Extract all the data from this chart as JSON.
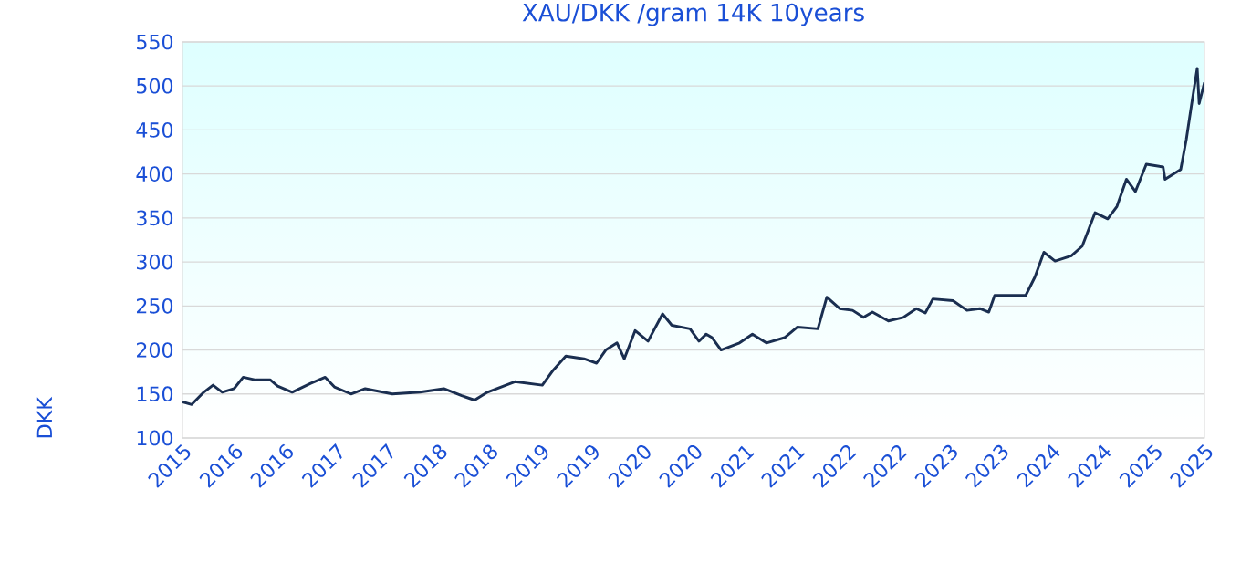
{
  "chart_data": {
    "type": "line",
    "title": "XAU/DKK /gram 14K 10years",
    "ylabel": "DKK",
    "color": "#1a2e50",
    "grid": "y",
    "x": [
      "2015-07-01",
      "2015-08-03",
      "2015-09-15",
      "2015-10-18",
      "2015-11-20",
      "2016-01-01",
      "2016-02-03",
      "2016-03-18",
      "2016-05-10",
      "2016-06-05",
      "2016-07-27",
      "2016-10-01",
      "2016-11-22",
      "2016-12-25",
      "2017-02-22",
      "2017-04-14",
      "2017-07-20",
      "2017-10-27",
      "2018-01-20",
      "2018-03-25",
      "2018-05-10",
      "2018-06-25",
      "2018-10-01",
      "2019-01-07",
      "2019-02-15",
      "2019-04-01",
      "2019-06-05",
      "2019-07-20",
      "2019-08-22",
      "2019-10-01",
      "2019-10-27",
      "2019-12-05",
      "2020-01-20",
      "2020-03-12",
      "2020-04-14",
      "2020-06-18",
      "2020-07-20",
      "2020-08-15",
      "2020-09-05",
      "2020-10-07",
      "2020-12-12",
      "2021-01-27",
      "2021-03-18",
      "2021-05-22",
      "2021-07-07",
      "2021-09-18",
      "2021-10-20",
      "2021-12-05",
      "2022-01-20",
      "2022-02-28",
      "2022-04-01",
      "2022-05-28",
      "2022-07-20",
      "2022-09-05",
      "2022-10-07",
      "2022-11-03",
      "2023-01-14",
      "2023-03-05",
      "2023-04-20",
      "2023-05-22",
      "2023-06-12",
      "2023-07-27",
      "2023-10-01",
      "2023-11-03",
      "2023-12-05",
      "2024-01-14",
      "2024-03-12",
      "2024-04-20",
      "2024-06-05",
      "2024-07-20",
      "2024-08-22",
      "2024-09-25",
      "2024-10-27",
      "2024-12-05",
      "2025-02-03",
      "2025-02-10",
      "2025-04-07",
      "2025-04-27",
      "2025-05-15",
      "2025-06-05",
      "2025-06-12",
      "2025-07-01"
    ],
    "values": [
      141,
      138,
      152,
      160,
      152,
      156,
      169,
      166,
      166,
      159,
      152,
      162,
      169,
      158,
      150,
      156,
      150,
      152,
      156,
      148,
      143,
      152,
      164,
      160,
      177,
      193,
      190,
      185,
      200,
      208,
      190,
      222,
      210,
      241,
      228,
      224,
      210,
      218,
      214,
      200,
      208,
      218,
      208,
      214,
      226,
      224,
      260,
      247,
      245,
      237,
      243,
      233,
      237,
      247,
      242,
      258,
      256,
      245,
      247,
      243,
      262,
      262,
      262,
      283,
      311,
      301,
      307,
      318,
      356,
      349,
      363,
      394,
      380,
      411,
      408,
      394,
      405,
      439,
      477,
      520,
      480,
      504
    ],
    "xlim": [
      "2015-07-01",
      "2025-07-01"
    ],
    "xticks": [
      {
        "value": "2015-07-01",
        "label": "2015"
      },
      {
        "value": "2016-01-01",
        "label": "2016"
      },
      {
        "value": "2016-07-01",
        "label": "2016"
      },
      {
        "value": "2017-01-01",
        "label": "2017"
      },
      {
        "value": "2017-07-01",
        "label": "2017"
      },
      {
        "value": "2018-01-01",
        "label": "2018"
      },
      {
        "value": "2018-07-01",
        "label": "2018"
      },
      {
        "value": "2019-01-01",
        "label": "2019"
      },
      {
        "value": "2019-07-01",
        "label": "2019"
      },
      {
        "value": "2020-01-01",
        "label": "2020"
      },
      {
        "value": "2020-07-01",
        "label": "2020"
      },
      {
        "value": "2021-01-01",
        "label": "2021"
      },
      {
        "value": "2021-07-01",
        "label": "2021"
      },
      {
        "value": "2022-01-01",
        "label": "2022"
      },
      {
        "value": "2022-07-01",
        "label": "2022"
      },
      {
        "value": "2023-01-01",
        "label": "2023"
      },
      {
        "value": "2023-07-01",
        "label": "2023"
      },
      {
        "value": "2024-01-01",
        "label": "2024"
      },
      {
        "value": "2024-07-01",
        "label": "2024"
      },
      {
        "value": "2025-01-01",
        "label": "2025"
      },
      {
        "value": "2025-07-01",
        "label": "2025"
      }
    ],
    "ylim": [
      100,
      550
    ],
    "yticks": [
      100,
      150,
      200,
      250,
      300,
      350,
      400,
      450,
      500,
      550
    ]
  }
}
